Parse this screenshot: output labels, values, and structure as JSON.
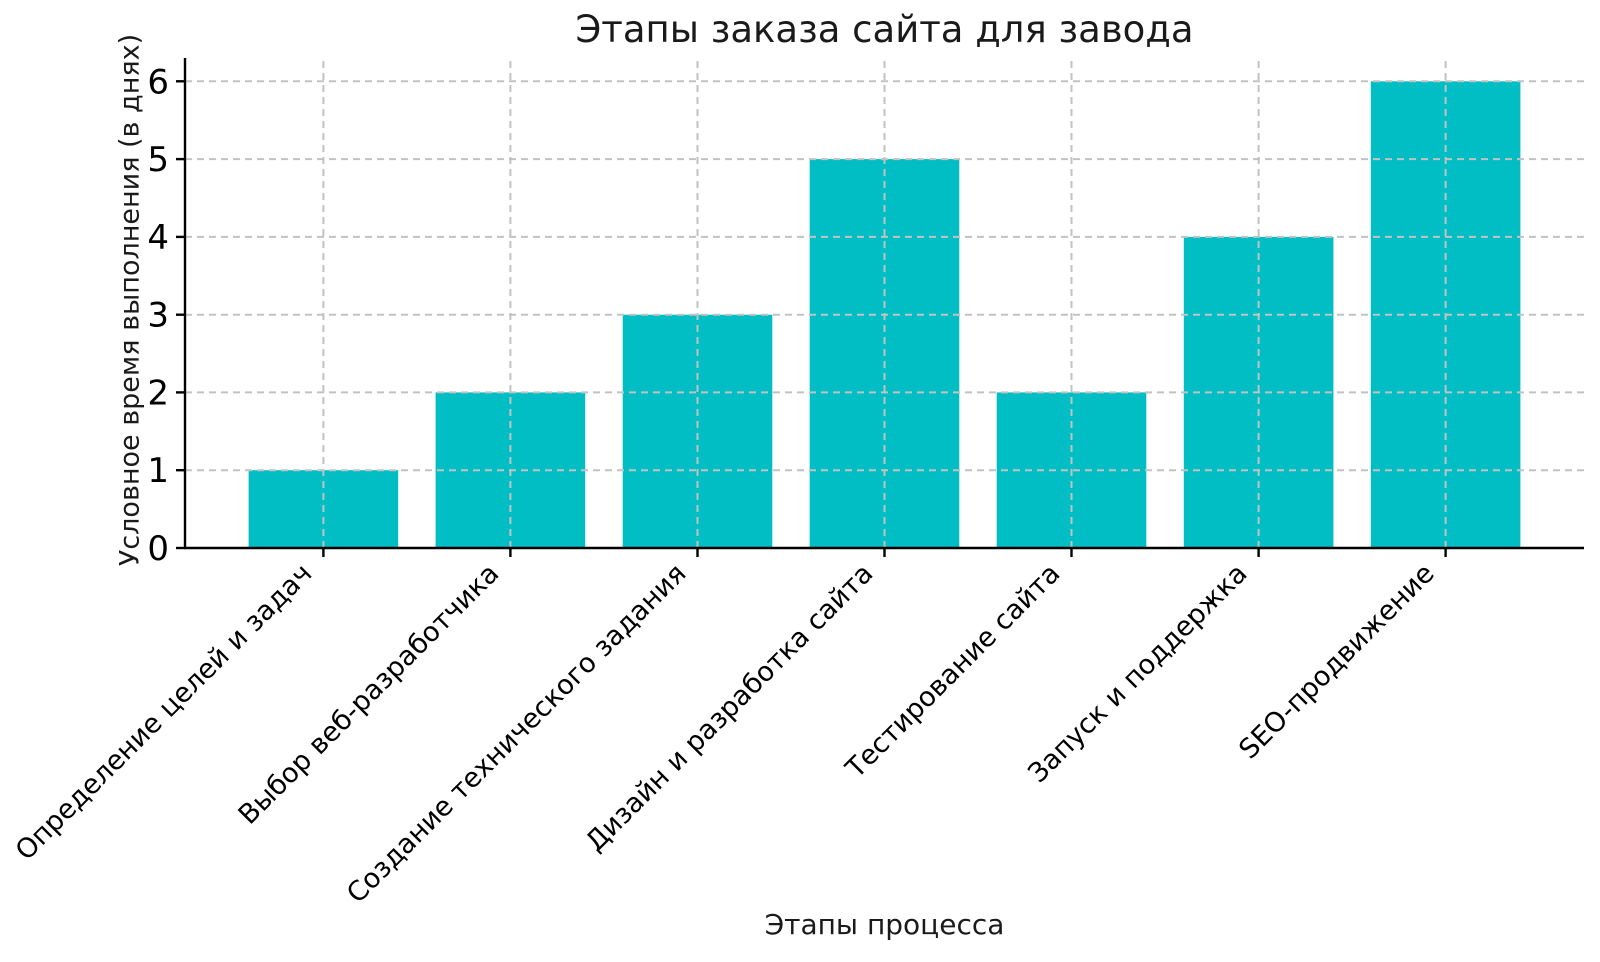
{
  "chart_data": {
    "type": "bar",
    "title": "Этапы заказа сайта для завода",
    "xlabel": "Этапы процесса",
    "ylabel": "Условное время выполнения (в днях)",
    "categories": [
      "Определение целей и задач",
      "Выбор веб-разработчика",
      "Создание технического задания",
      "Дизайн и разработка сайта",
      "Тестирование сайта",
      "Запуск и поддержка",
      "SEO-продвижение"
    ],
    "values": [
      1,
      2,
      3,
      5,
      2,
      4,
      6
    ],
    "yticks": [
      0,
      1,
      2,
      3,
      4,
      5,
      6
    ],
    "ylim": [
      0,
      6.3
    ],
    "x_tick_rotation": -45,
    "bar_color": "#00BEC3",
    "grid_color": "#c2c2c2",
    "spine_color": "#000000",
    "text_color": "#000000",
    "grid": "both-dashed-over-bars",
    "legend": null
  }
}
